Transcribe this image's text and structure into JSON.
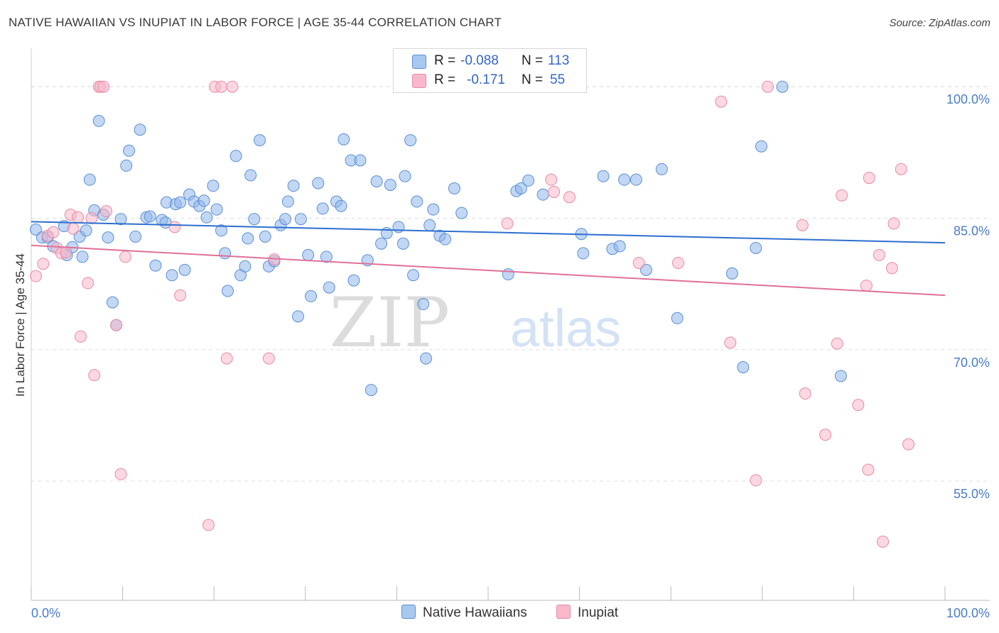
{
  "title": "NATIVE HAWAIIAN VS INUPIAT IN LABOR FORCE | AGE 35-44 CORRELATION CHART",
  "source": "Source: ZipAtlas.com",
  "watermark": {
    "zip": "ZIP",
    "atlas": "atlas"
  },
  "legend": {
    "rows": [
      {
        "r_label": "R =",
        "r_value": "-0.088",
        "n_label": "N =",
        "n_value": "113",
        "color": "#a9c8f0"
      },
      {
        "r_label": "R =",
        "r_value": "-0.171",
        "n_label": "N =",
        "n_value": "55",
        "color": "#f7b8cb"
      }
    ]
  },
  "bottom_legend": [
    {
      "label": "Native Hawaiians",
      "color": "#a9c8f0"
    },
    {
      "label": "Inupiat",
      "color": "#f7b8cb"
    }
  ],
  "chart_data": {
    "type": "scatter",
    "title": "NATIVE HAWAIIAN VS INUPIAT IN LABOR FORCE | AGE 35-44 CORRELATION CHART",
    "xlabel": "",
    "ylabel": "In Labor Force | Age 35-44",
    "xlim": [
      0,
      100
    ],
    "ylim": [
      41.4,
      103.5
    ],
    "x_tick_labels": [
      "0.0%",
      "100.0%"
    ],
    "y_ticks": [
      55.0,
      70.0,
      85.0,
      100.0
    ],
    "y_tick_labels": [
      "55.0%",
      "70.0%",
      "85.0%",
      "100.0%"
    ],
    "series": [
      {
        "name": "Native Hawaiians",
        "color": "#8fb7ea",
        "stroke": "#5b8fd6",
        "trend": {
          "x": [
            0,
            100
          ],
          "y": [
            84.6,
            82.2
          ],
          "color": "#2e6fd0"
        },
        "points": [
          [
            0.5,
            83.7
          ],
          [
            1.2,
            82.8
          ],
          [
            1.8,
            82.8
          ],
          [
            2.4,
            81.8
          ],
          [
            3.6,
            84.1
          ],
          [
            3.9,
            80.8
          ],
          [
            4.5,
            81.7
          ],
          [
            5.3,
            82.9
          ],
          [
            5.6,
            80.6
          ],
          [
            6,
            83.6
          ],
          [
            6.4,
            89.4
          ],
          [
            6.9,
            85.9
          ],
          [
            7.4,
            96.1
          ],
          [
            7.9,
            85.4
          ],
          [
            8.4,
            82.8
          ],
          [
            8.9,
            75.4
          ],
          [
            9.3,
            72.8
          ],
          [
            9.8,
            84.9
          ],
          [
            10.4,
            91
          ],
          [
            10.7,
            92.7
          ],
          [
            11.4,
            82.9
          ],
          [
            11.9,
            95.1
          ],
          [
            12.6,
            85.1
          ],
          [
            13,
            85.2
          ],
          [
            13.6,
            79.6
          ],
          [
            14.3,
            84.8
          ],
          [
            14.7,
            84.5
          ],
          [
            14.8,
            86.8
          ],
          [
            15.4,
            78.5
          ],
          [
            15.8,
            86.6
          ],
          [
            16.3,
            86.8
          ],
          [
            16.8,
            79.1
          ],
          [
            17.3,
            87.7
          ],
          [
            17.8,
            86.9
          ],
          [
            18.4,
            86.4
          ],
          [
            18.9,
            87
          ],
          [
            19.2,
            85.1
          ],
          [
            19.9,
            88.7
          ],
          [
            20.3,
            86
          ],
          [
            20.8,
            83.6
          ],
          [
            21.2,
            81
          ],
          [
            21.5,
            76.7
          ],
          [
            22.4,
            92.1
          ],
          [
            22.9,
            78.5
          ],
          [
            23.4,
            79.5
          ],
          [
            23.7,
            82.7
          ],
          [
            24,
            89.9
          ],
          [
            24.4,
            84.9
          ],
          [
            25,
            93.9
          ],
          [
            25.6,
            82.9
          ],
          [
            26,
            79.5
          ],
          [
            26.6,
            80.1
          ],
          [
            27.3,
            84.2
          ],
          [
            27.8,
            84.9
          ],
          [
            28.1,
            86.9
          ],
          [
            28.7,
            88.7
          ],
          [
            29.2,
            73.8
          ],
          [
            29.5,
            84.9
          ],
          [
            30.3,
            80.8
          ],
          [
            30.6,
            76.1
          ],
          [
            31.4,
            89
          ],
          [
            31.9,
            86.1
          ],
          [
            32.3,
            80.6
          ],
          [
            32.6,
            77.1
          ],
          [
            33.4,
            86.9
          ],
          [
            33.9,
            86.4
          ],
          [
            34.2,
            94
          ],
          [
            35,
            91.6
          ],
          [
            35.3,
            77.9
          ],
          [
            36,
            91.6
          ],
          [
            36.8,
            80.2
          ],
          [
            37.2,
            65.4
          ],
          [
            37.8,
            89.2
          ],
          [
            38.3,
            82.1
          ],
          [
            38.9,
            83.3
          ],
          [
            39.3,
            88.8
          ],
          [
            40.2,
            84
          ],
          [
            40.7,
            82.1
          ],
          [
            40.9,
            89.8
          ],
          [
            41.5,
            93.9
          ],
          [
            41.8,
            78.5
          ],
          [
            42.2,
            86.9
          ],
          [
            42.9,
            75.2
          ],
          [
            43.2,
            69
          ],
          [
            43.6,
            84.2
          ],
          [
            44,
            86
          ],
          [
            44.7,
            83
          ],
          [
            45.3,
            82.6
          ],
          [
            46.3,
            88.4
          ],
          [
            47.1,
            85.6
          ],
          [
            52.2,
            78.6
          ],
          [
            53.1,
            88.1
          ],
          [
            53.6,
            88.4
          ],
          [
            54.4,
            89.3
          ],
          [
            56,
            87.7
          ],
          [
            60.2,
            83.2
          ],
          [
            60.4,
            81
          ],
          [
            62.6,
            89.8
          ],
          [
            63.6,
            81.5
          ],
          [
            64.4,
            81.8
          ],
          [
            64.9,
            89.4
          ],
          [
            66.2,
            89.4
          ],
          [
            67.3,
            79.1
          ],
          [
            69,
            90.6
          ],
          [
            70.7,
            73.6
          ],
          [
            76.7,
            78.7
          ],
          [
            77.9,
            68
          ],
          [
            79.3,
            81.6
          ],
          [
            79.9,
            93.2
          ],
          [
            82.2,
            100
          ],
          [
            88.6,
            67
          ]
        ]
      },
      {
        "name": "Inupiat",
        "color": "#f7b8cb",
        "stroke": "#e88aa6",
        "trend": {
          "x": [
            0,
            100
          ],
          "y": [
            81.9,
            76.2
          ],
          "color": "#e0709a"
        },
        "points": [
          [
            0.5,
            78.4
          ],
          [
            1.3,
            79.8
          ],
          [
            1.8,
            83
          ],
          [
            2.4,
            83.4
          ],
          [
            2.8,
            81.6
          ],
          [
            3.3,
            81
          ],
          [
            3.8,
            81.1
          ],
          [
            4.3,
            85.4
          ],
          [
            4.6,
            83.8
          ],
          [
            5.1,
            85.1
          ],
          [
            5.4,
            71.5
          ],
          [
            6.2,
            77.6
          ],
          [
            6.6,
            85
          ],
          [
            6.9,
            67.1
          ],
          [
            7.4,
            100
          ],
          [
            7.6,
            100
          ],
          [
            7.9,
            100
          ],
          [
            8.2,
            85.8
          ],
          [
            9.3,
            72.8
          ],
          [
            9.8,
            55.8
          ],
          [
            10.3,
            80.6
          ],
          [
            15.7,
            84
          ],
          [
            16.3,
            76.2
          ],
          [
            19.4,
            50
          ],
          [
            20.1,
            100
          ],
          [
            20.8,
            100
          ],
          [
            21.4,
            69
          ],
          [
            22,
            100
          ],
          [
            26,
            69
          ],
          [
            26.6,
            80.3
          ],
          [
            52.1,
            84.4
          ],
          [
            56.9,
            89.4
          ],
          [
            57.2,
            88
          ],
          [
            58.9,
            87.4
          ],
          [
            66.5,
            79.9
          ],
          [
            70.8,
            79.9
          ],
          [
            75.5,
            98.3
          ],
          [
            76.5,
            70.8
          ],
          [
            79.3,
            55.1
          ],
          [
            80.6,
            100
          ],
          [
            84.4,
            84.2
          ],
          [
            84.7,
            65
          ],
          [
            86.9,
            60.3
          ],
          [
            88.2,
            70.7
          ],
          [
            88.7,
            87.6
          ],
          [
            90.5,
            63.7
          ],
          [
            91.4,
            77.3
          ],
          [
            91.6,
            56.3
          ],
          [
            91.7,
            89.6
          ],
          [
            92.8,
            80.8
          ],
          [
            93.2,
            48.1
          ],
          [
            94.2,
            79.3
          ],
          [
            94.4,
            84.4
          ],
          [
            95.2,
            90.6
          ],
          [
            96,
            59.2
          ]
        ]
      }
    ]
  }
}
